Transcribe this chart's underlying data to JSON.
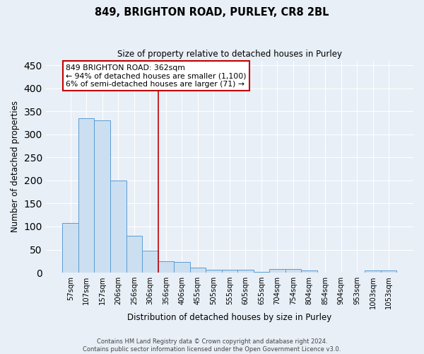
{
  "title": "849, BRIGHTON ROAD, PURLEY, CR8 2BL",
  "subtitle": "Size of property relative to detached houses in Purley",
  "xlabel": "Distribution of detached houses by size in Purley",
  "ylabel": "Number of detached properties",
  "bar_labels": [
    "57sqm",
    "107sqm",
    "157sqm",
    "206sqm",
    "256sqm",
    "306sqm",
    "356sqm",
    "406sqm",
    "455sqm",
    "505sqm",
    "555sqm",
    "605sqm",
    "655sqm",
    "704sqm",
    "754sqm",
    "804sqm",
    "854sqm",
    "904sqm",
    "953sqm",
    "1003sqm",
    "1053sqm"
  ],
  "bar_values": [
    108,
    335,
    330,
    200,
    80,
    47,
    25,
    23,
    11,
    7,
    6,
    7,
    1,
    8,
    8,
    4,
    0,
    0,
    0,
    4,
    4
  ],
  "bar_color": "#ccdff0",
  "bar_edge_color": "#5b9bd5",
  "bg_color": "#e8eff7",
  "grid_color": "#ffffff",
  "vline_color": "#c00000",
  "annotation_text": "849 BRIGHTON ROAD: 362sqm\n← 94% of detached houses are smaller (1,100)\n6% of semi-detached houses are larger (71) →",
  "annotation_box_color": "#ffffff",
  "annotation_box_edge": "#c00000",
  "footer": "Contains HM Land Registry data © Crown copyright and database right 2024.\nContains public sector information licensed under the Open Government Licence v3.0.",
  "ylim": [
    0,
    460
  ],
  "yticks": [
    0,
    50,
    100,
    150,
    200,
    250,
    300,
    350,
    400,
    450
  ]
}
